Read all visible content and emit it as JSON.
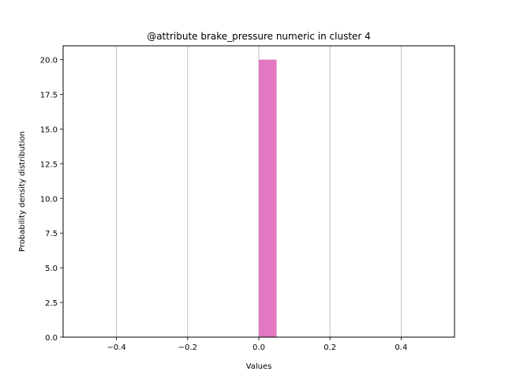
{
  "chart_data": {
    "type": "bar",
    "title": "@attribute brake_pressure numeric in cluster  4",
    "xlabel": "Values",
    "ylabel": "Probability density distribution",
    "xlim": [
      -0.55,
      0.55
    ],
    "ylim": [
      0,
      21
    ],
    "x_ticks": [
      -0.4,
      -0.2,
      0.0,
      0.2,
      0.4
    ],
    "x_tick_labels": [
      "−0.4",
      "−0.2",
      "0.0",
      "0.2",
      "0.4"
    ],
    "y_ticks": [
      0,
      2.5,
      5,
      7.5,
      10,
      12.5,
      15,
      17.5,
      20
    ],
    "y_tick_labels": [
      "0.0",
      "2.5",
      "5.0",
      "7.5",
      "10.0",
      "12.5",
      "15.0",
      "17.5",
      "20.0"
    ],
    "grid": "vertical",
    "bars": [
      {
        "x_start": 0.0,
        "x_end": 0.05,
        "value": 20
      }
    ],
    "colors": {
      "bar": "#e377c2",
      "grid": "#b0b0b0",
      "axes": "#000000"
    }
  }
}
